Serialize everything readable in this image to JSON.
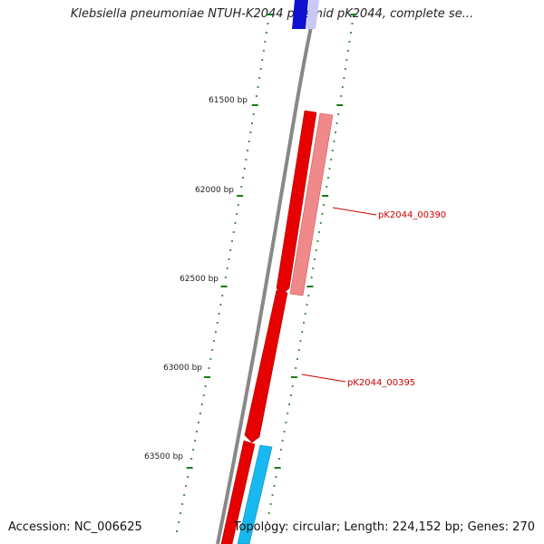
{
  "title": "Klebsiella pneumoniae NTUH-K2044 plasmid pK2044, complete se...",
  "footer": {
    "accession": "Accession: NC_006625",
    "summary": "Topology: circular; Length: 224,152 bp; Genes: 270"
  },
  "ruler": {
    "labels": [
      "61500 bp",
      "62000 bp",
      "62500 bp",
      "63000 bp",
      "63500 bp"
    ],
    "tick_color": "#1a7a1a"
  },
  "genes": [
    {
      "name": "pK2044_00390",
      "label": "pK2044_00390",
      "color": "#f08a8a"
    },
    {
      "name": "pK2044_00395",
      "label": "pK2044_00395",
      "color": "#e00000"
    }
  ],
  "colors": {
    "backbone": "#888888",
    "cds_red": "#e60000",
    "cds_pink": "#f08a8a",
    "cds_cyan": "#18b8f0",
    "cds_blue": "#1010d0",
    "label_red": "#cc0000"
  }
}
